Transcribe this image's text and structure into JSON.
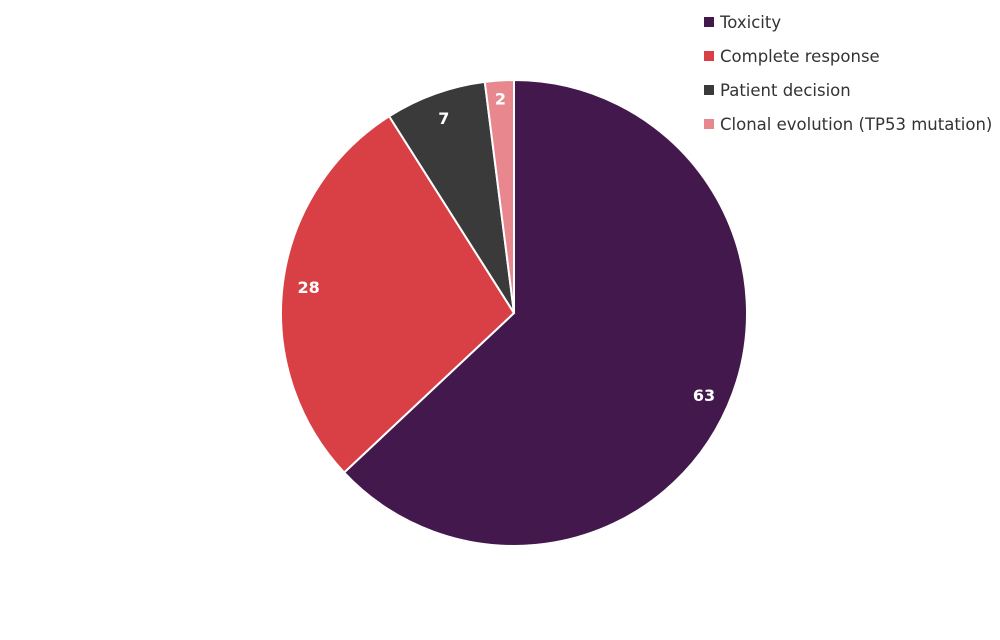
{
  "chart_data": {
    "type": "pie",
    "title": "",
    "labels": [
      "Toxicity",
      "Complete response",
      "Patient decision",
      "Clonal evolution (TP53 mutation)"
    ],
    "values": [
      63,
      28,
      7,
      2
    ],
    "data_labels": [
      "63",
      "28",
      "7",
      "2"
    ],
    "colors": [
      "#43194d",
      "#d94045",
      "#3a3a3a",
      "#e8888e"
    ],
    "start_angle": "top",
    "direction": "clockwise",
    "legend_position": "top-right"
  }
}
